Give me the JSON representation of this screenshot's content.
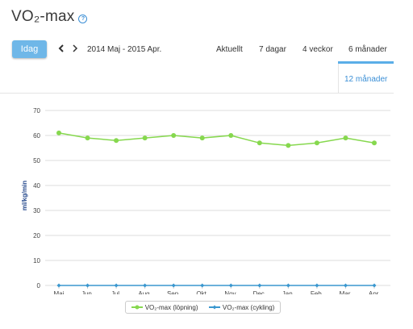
{
  "header": {
    "title": "VO₂-max"
  },
  "toolbar": {
    "today_label": "Idag",
    "date_range": "2014 Maj - 2015 Apr.",
    "tabs": [
      {
        "label": "Aktuellt"
      },
      {
        "label": "7 dagar"
      },
      {
        "label": "4 veckor"
      },
      {
        "label": "6 månader"
      }
    ],
    "active_tab": "12 månader"
  },
  "colors": {
    "running": "#86d84e",
    "cycling": "#3a97cf",
    "accent": "#5aaee8"
  },
  "chart_data": {
    "type": "line",
    "categories": [
      "Maj",
      "Jun.",
      "Jul.",
      "Aug.",
      "Sep.",
      "Okt.",
      "Nov.",
      "Dec.",
      "Jan.",
      "Feb.",
      "Mar.",
      "Apr."
    ],
    "series": [
      {
        "name": "VO₂-max (löpning)",
        "values": [
          61,
          59,
          58,
          59,
          60,
          59,
          60,
          57,
          56,
          57,
          59,
          57
        ]
      },
      {
        "name": "VO₂-max (cykling)",
        "values": [
          0,
          0,
          0,
          0,
          0,
          0,
          0,
          0,
          0,
          0,
          0,
          0
        ]
      }
    ],
    "ylabel": "ml/kg/min",
    "ylim": [
      0,
      70
    ],
    "yticks": [
      "0",
      "10",
      "20",
      "30",
      "40",
      "50",
      "60",
      "70"
    ],
    "grid": true,
    "legend_position": "bottom"
  }
}
